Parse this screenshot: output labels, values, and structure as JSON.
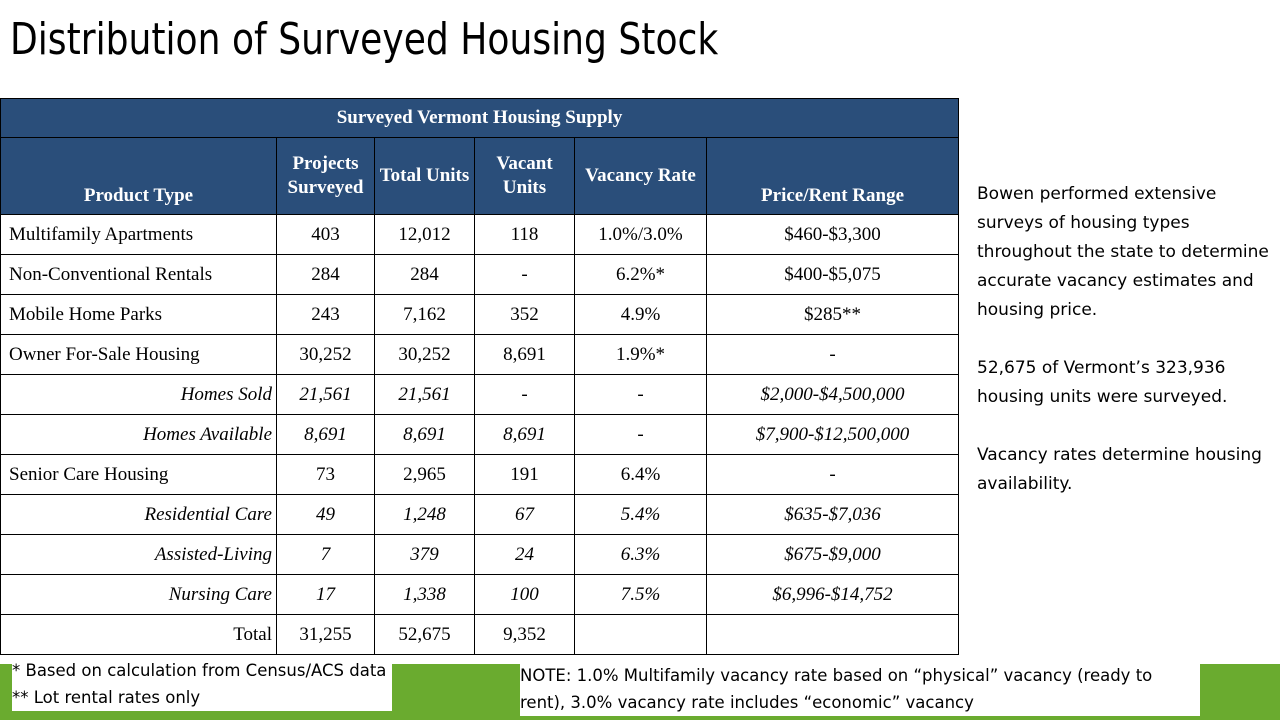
{
  "title": "Distribution of Surveyed Housing Stock",
  "table": {
    "caption": "Surveyed Vermont Housing Supply",
    "headers": [
      "Product Type",
      "Projects Surveyed",
      "Total Units",
      "Vacant Units",
      "Vacancy Rate",
      "Price/Rent Range"
    ],
    "rows": [
      {
        "style": "main",
        "cells": [
          "Multifamily Apartments",
          "403",
          "12,012",
          "118",
          "1.0%/3.0%",
          "$460-$3,300"
        ]
      },
      {
        "style": "main",
        "cells": [
          "Non-Conventional Rentals",
          "284",
          "284",
          "-",
          "6.2%*",
          "$400-$5,075"
        ]
      },
      {
        "style": "main",
        "cells": [
          "Mobile Home Parks",
          "243",
          "7,162",
          "352",
          "4.9%",
          "$285**"
        ]
      },
      {
        "style": "main",
        "cells": [
          "Owner For-Sale Housing",
          "30,252",
          "30,252",
          "8,691",
          "1.9%*",
          "-"
        ]
      },
      {
        "style": "sub",
        "cells": [
          "Homes Sold",
          "21,561",
          "21,561",
          "-",
          "-",
          "$2,000-$4,500,000"
        ]
      },
      {
        "style": "sub",
        "cells": [
          "Homes Available",
          "8,691",
          "8,691",
          "8,691",
          "-",
          "$7,900-$12,500,000"
        ]
      },
      {
        "style": "main",
        "cells": [
          "Senior Care Housing",
          "73",
          "2,965",
          "191",
          "6.4%",
          "-"
        ]
      },
      {
        "style": "sub",
        "cells": [
          "Residential Care",
          "49",
          "1,248",
          "67",
          "5.4%",
          "$635-$7,036"
        ]
      },
      {
        "style": "sub",
        "cells": [
          "Assisted-Living",
          "7",
          "379",
          "24",
          "6.3%",
          "$675-$9,000"
        ]
      },
      {
        "style": "sub",
        "cells": [
          "Nursing Care",
          "17",
          "1,338",
          "100",
          "7.5%",
          "$6,996-$14,752"
        ]
      },
      {
        "style": "total",
        "cells": [
          "Total",
          "31,255",
          "52,675",
          "9,352",
          "",
          ""
        ]
      }
    ]
  },
  "side_text": [
    "Bowen performed extensive surveys of housing types throughout the state to determine accurate vacancy estimates and housing price.",
    "52,675 of Vermont’s 323,936 housing units were surveyed.",
    "Vacancy rates determine housing availability."
  ],
  "footnotes": [
    "* Based on calculation from Census/ACS data",
    "** Lot rental rates only"
  ],
  "note": "NOTE: 1.0% Multifamily vacancy rate based on “physical” vacancy (ready to rent), 3.0% vacancy rate includes “economic” vacancy",
  "colors": {
    "header_bg": "#2a4e7a",
    "accent_band": "#6aab2f"
  }
}
